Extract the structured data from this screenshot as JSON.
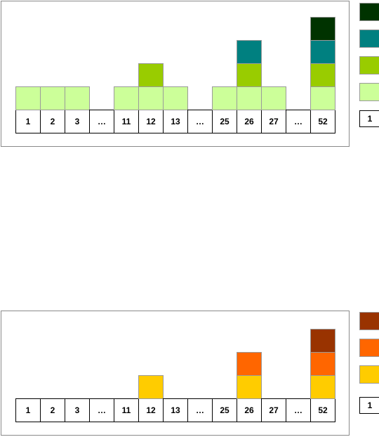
{
  "panels": [
    {
      "id": "top",
      "labels": [
        "1",
        "2",
        "3",
        "…",
        "11",
        "12",
        "13",
        "…",
        "25",
        "26",
        "27",
        "…",
        "52"
      ],
      "stack_heights": [
        1,
        1,
        1,
        0,
        1,
        2,
        1,
        0,
        1,
        3,
        1,
        0,
        4
      ],
      "level_colors": [
        "#ccff99",
        "#99cc00",
        "#008080",
        "#003300"
      ],
      "legend_number": "1"
    },
    {
      "id": "bottom",
      "labels": [
        "1",
        "2",
        "3",
        "…",
        "11",
        "12",
        "13",
        "…",
        "25",
        "26",
        "27",
        "…",
        "52"
      ],
      "stack_heights": [
        0,
        0,
        0,
        0,
        0,
        1,
        0,
        0,
        0,
        2,
        0,
        0,
        3
      ],
      "level_colors": [
        "#ffcc00",
        "#ff6600",
        "#993300"
      ],
      "legend_number": "1"
    }
  ]
}
